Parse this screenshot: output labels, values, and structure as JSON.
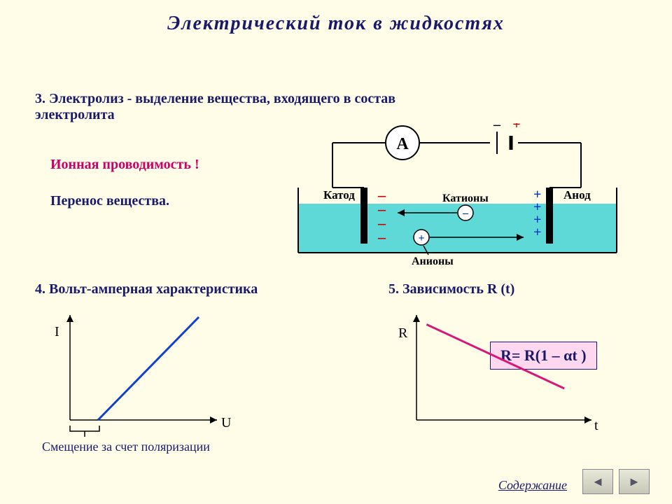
{
  "title": "Электрический  ток  в  жидкостях",
  "section3": "3. Электролиз -  выделение  вещества,  входящего  в  состав электролита",
  "ionic": "Ионная  проводимость !",
  "transfer": "Перенос  вещества.",
  "section4": "4.  Вольт-амперная  характеристика",
  "section5": "5.  Зависимость R (t)",
  "shift_label": "Смещение  за счет  поляризации",
  "formula": "R= R(1 – αt )",
  "contents": "Содержание",
  "circuit": {
    "ammeter_label": "А",
    "cathode_label": "Катод",
    "anode_label": "Анод",
    "cations_label": "Катионы",
    "anions_label": "Анионы",
    "battery_minus": "–",
    "battery_plus": "+",
    "colors": {
      "wire": "#000000",
      "electrolyte": "#5fd8d8",
      "plus": "#0033cc",
      "minus": "#cc0000"
    }
  },
  "chartVA": {
    "type": "line",
    "x_label": "U",
    "y_label": "I",
    "axis_color": "#000000",
    "line_color": "#1040d0",
    "line_width": 3,
    "xlim": [
      0,
      10
    ],
    "ylim": [
      0,
      10
    ],
    "offset_x": 2.0,
    "points": [
      [
        2.0,
        0
      ],
      [
        9.2,
        9.8
      ]
    ]
  },
  "chartRT": {
    "type": "line",
    "x_label": "t",
    "y_label": "R",
    "axis_color": "#000000",
    "line_color": "#d81878",
    "line_width": 3,
    "xlim": [
      0,
      10
    ],
    "ylim": [
      0,
      10
    ],
    "points": [
      [
        0.6,
        9.1
      ],
      [
        8.8,
        3.0
      ]
    ]
  },
  "nav": {
    "prev_icon": "◄",
    "next_icon": "►"
  }
}
